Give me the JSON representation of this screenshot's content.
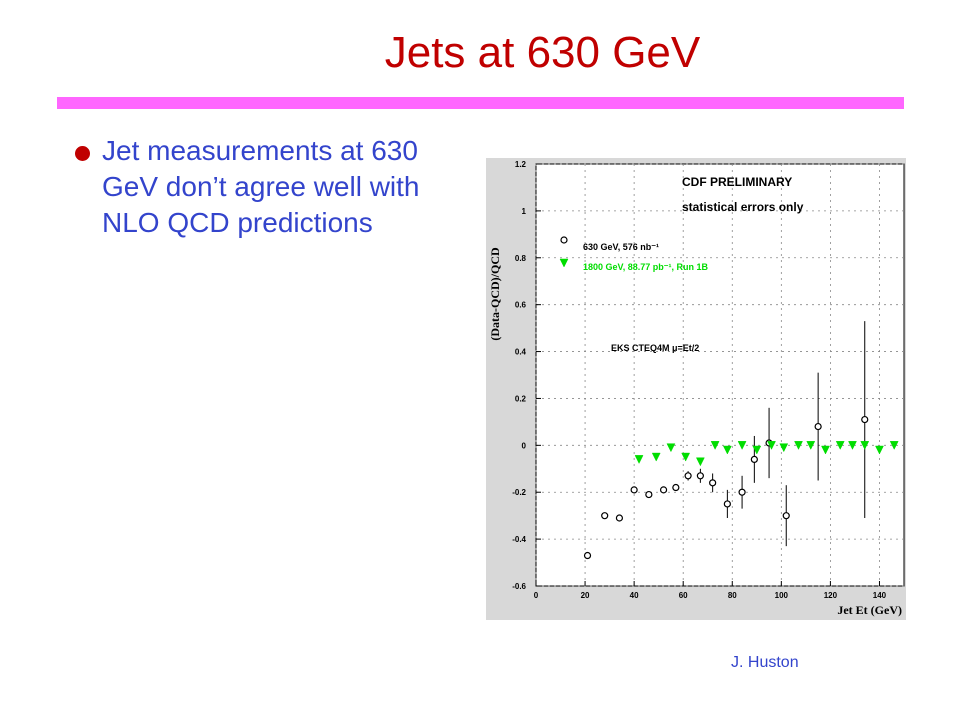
{
  "slide": {
    "title": "Jets at 630 GeV",
    "bullet": "Jet measurements at 630 GeV don’t agree well with NLO QCD predictions",
    "author": "J. Huston",
    "colors": {
      "title": "#c00000",
      "rule": "#ff66ff",
      "text": "#3344cc",
      "panel": "#d8d8d8"
    }
  },
  "chart_data": {
    "type": "scatter",
    "title": "",
    "xlabel": "Jet Et (GeV)",
    "ylabel": "(Data-QCD)/QCD",
    "xlim": [
      0,
      150
    ],
    "ylim": [
      -0.6,
      1.2
    ],
    "x_ticks": [
      0,
      20,
      40,
      60,
      80,
      100,
      120,
      140
    ],
    "y_ticks": [
      -0.6,
      -0.4,
      -0.2,
      0,
      0.2,
      0.4,
      0.6,
      0.8,
      1,
      1.2
    ],
    "grid": true,
    "annotations": [
      "CDF PRELIMINARY",
      "statistical errors only",
      "EKS CTEQ4M μ=Et/2"
    ],
    "legend_position": "top-left",
    "series": [
      {
        "name": "630 GeV, 576 nb⁻¹",
        "marker": "open-circle",
        "color": "#000000",
        "x": [
          21,
          28,
          34,
          40,
          46,
          52,
          57,
          62,
          67,
          72,
          78,
          84,
          89,
          95,
          102,
          115,
          134
        ],
        "y": [
          -0.47,
          -0.3,
          -0.31,
          -0.19,
          -0.21,
          -0.19,
          -0.18,
          -0.13,
          -0.13,
          -0.16,
          -0.25,
          -0.2,
          -0.06,
          0.01,
          -0.3,
          0.08,
          0.11
        ],
        "err": [
          0.0,
          0.0,
          0.0,
          0.0,
          0.0,
          0.0,
          0.0,
          0.02,
          0.03,
          0.04,
          0.06,
          0.07,
          0.1,
          0.15,
          0.13,
          0.23,
          0.42
        ]
      },
      {
        "name": "1800 GeV, 88.77 pb⁻¹, Run 1B",
        "marker": "filled-triangle-down",
        "color": "#00dd00",
        "x": [
          42,
          49,
          55,
          61,
          67,
          73,
          78,
          84,
          90,
          96,
          101,
          107,
          112,
          118,
          124,
          129,
          134,
          140,
          146
        ],
        "y": [
          -0.06,
          -0.05,
          -0.01,
          -0.05,
          -0.07,
          0.0,
          -0.02,
          0.0,
          -0.02,
          0.0,
          -0.01,
          0.0,
          0.0,
          -0.02,
          0.0,
          0.0,
          0.0,
          -0.02,
          0.0
        ],
        "err": [
          0.0,
          0.0,
          0.0,
          0.0,
          0.0,
          0.01,
          0.0,
          0.0,
          0.0,
          0.0,
          0.0,
          0.0,
          0.0,
          0.0,
          0.0,
          0.0,
          0.0,
          0.0,
          0.0
        ]
      }
    ]
  }
}
